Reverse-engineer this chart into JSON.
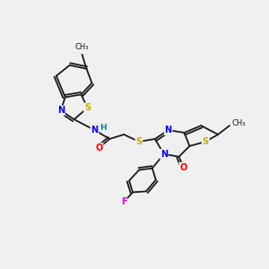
{
  "background_color": "#f0f0f0",
  "bond_color": "#1a1a1a",
  "atom_colors": {
    "N": "#0000ee",
    "S": "#ccaa00",
    "O": "#ee0000",
    "F": "#dd00dd",
    "H": "#008888",
    "C": "#1a1a1a"
  },
  "figsize": [
    3.0,
    3.0
  ],
  "dpi": 100
}
